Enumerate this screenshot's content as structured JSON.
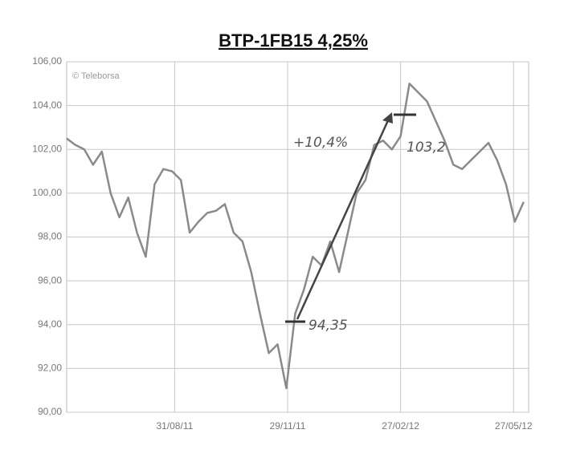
{
  "chart_data": {
    "type": "line",
    "title": "BTP-1FB15 4,25%",
    "watermark": "© Teleborsa",
    "x": [
      "2011-06-06",
      "2011-06-13",
      "2011-06-20",
      "2011-06-27",
      "2011-07-04",
      "2011-07-11",
      "2011-07-18",
      "2011-07-25",
      "2011-08-01",
      "2011-08-08",
      "2011-08-15",
      "2011-08-22",
      "2011-08-29",
      "2011-09-05",
      "2011-09-12",
      "2011-09-19",
      "2011-09-26",
      "2011-10-03",
      "2011-10-10",
      "2011-10-17",
      "2011-10-24",
      "2011-10-31",
      "2011-11-07",
      "2011-11-14",
      "2011-11-21",
      "2011-11-28",
      "2011-12-05",
      "2011-12-12",
      "2011-12-19",
      "2011-12-26",
      "2012-01-02",
      "2012-01-09",
      "2012-01-16",
      "2012-01-23",
      "2012-01-30",
      "2012-02-06",
      "2012-02-13",
      "2012-02-20",
      "2012-02-27",
      "2012-03-05",
      "2012-03-12",
      "2012-03-19",
      "2012-03-26",
      "2012-04-02",
      "2012-04-09",
      "2012-04-16",
      "2012-04-23",
      "2012-04-30",
      "2012-05-07",
      "2012-05-14",
      "2012-05-21",
      "2012-05-28",
      "2012-06-04"
    ],
    "series": [
      {
        "name": "BTP-1FB15",
        "color": "#8a8a8a",
        "values": [
          102.5,
          102.2,
          102.0,
          101.3,
          101.9,
          100.0,
          98.9,
          99.8,
          98.2,
          97.1,
          100.4,
          101.1,
          101.0,
          100.6,
          98.2,
          98.7,
          99.1,
          99.2,
          99.5,
          98.2,
          97.8,
          96.4,
          94.5,
          92.7,
          93.1,
          91.1,
          94.5,
          95.6,
          97.1,
          96.7,
          97.8,
          96.4,
          98.2,
          100.0,
          100.6,
          102.2,
          102.4,
          102.0,
          102.6,
          105.0,
          104.6,
          104.2,
          103.3,
          102.4,
          101.3,
          101.1,
          101.5,
          101.9,
          102.3,
          101.5,
          100.4,
          98.7,
          99.6
        ]
      }
    ],
    "xlim": [
      "2011-06-06",
      "2012-06-08"
    ],
    "xticks": [
      {
        "value": "2011-08-31",
        "label": "31/08/11"
      },
      {
        "value": "2011-11-29",
        "label": "29/11/11"
      },
      {
        "value": "2012-02-27",
        "label": "27/02/12"
      },
      {
        "value": "2012-05-27",
        "label": "27/05/12"
      }
    ],
    "ylim": [
      90,
      106
    ],
    "yticks": [
      {
        "value": 90,
        "label": "90,00"
      },
      {
        "value": 92,
        "label": "92,00"
      },
      {
        "value": 94,
        "label": "94,00"
      },
      {
        "value": 96,
        "label": "96,00"
      },
      {
        "value": 98,
        "label": "98,00"
      },
      {
        "value": 100,
        "label": "100,00"
      },
      {
        "value": 102,
        "label": "102,00"
      },
      {
        "value": 104,
        "label": "104,00"
      },
      {
        "value": 106,
        "label": "106,00"
      }
    ],
    "grid": true,
    "annotations": [
      "+10,4%",
      "94,35",
      "103,2"
    ]
  }
}
